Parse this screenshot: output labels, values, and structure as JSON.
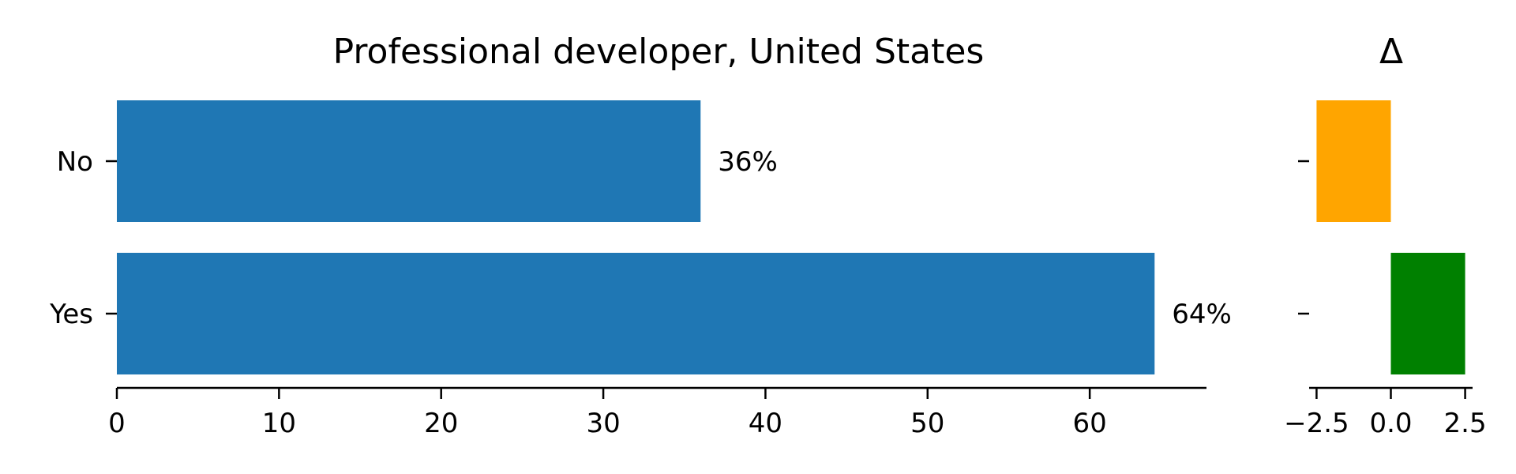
{
  "chart_data": [
    {
      "type": "bar",
      "orientation": "horizontal",
      "title": "Professional developer, United States",
      "categories": [
        "No",
        "Yes"
      ],
      "values": [
        36,
        64
      ],
      "data_labels": [
        "36%",
        "64%"
      ],
      "xlabel": "",
      "ylabel": "",
      "xlim": [
        0,
        67.2
      ],
      "xticks": [
        0,
        10,
        20,
        30,
        40,
        50,
        60
      ],
      "xtick_labels": [
        "0",
        "10",
        "20",
        "30",
        "40",
        "50",
        "60"
      ],
      "grid": false,
      "colors": {
        "bar": "#1f77b4"
      }
    },
    {
      "type": "bar",
      "orientation": "horizontal",
      "title": "Δ",
      "categories": [
        "No",
        "Yes"
      ],
      "values": [
        -2.5,
        2.5
      ],
      "xlabel": "",
      "ylabel": "",
      "xlim": [
        -2.75,
        2.75
      ],
      "xticks": [
        -2.5,
        0,
        2.5
      ],
      "xtick_labels": [
        "−2.5",
        "0.0",
        "2.5"
      ],
      "grid": false,
      "colors": {
        "negative": "#ffa500",
        "positive": "#008000"
      }
    }
  ]
}
